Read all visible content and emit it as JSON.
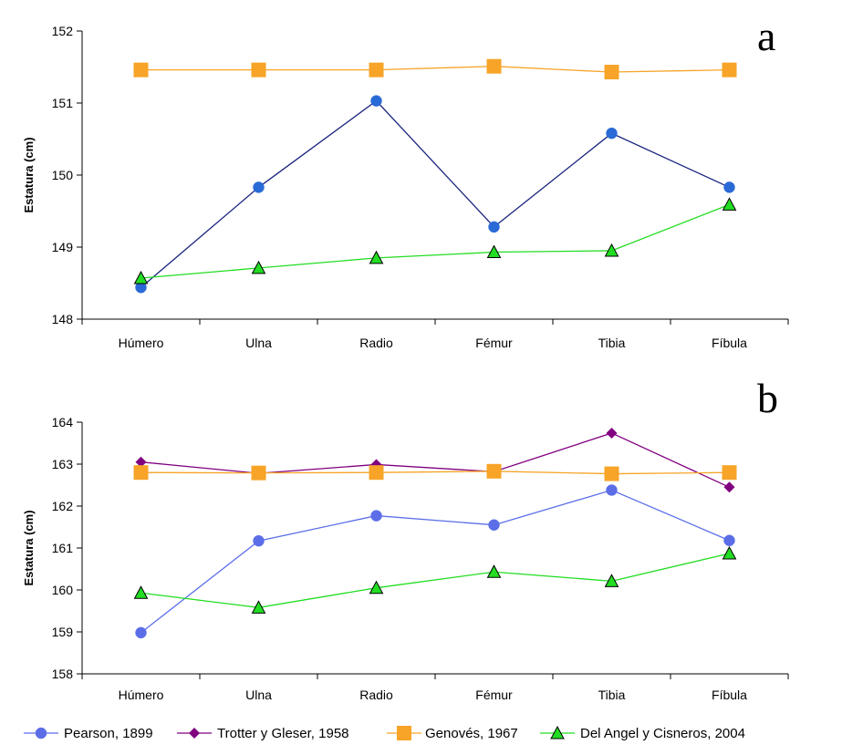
{
  "chart_data": [
    {
      "type": "line",
      "panel_label": "a",
      "categories": [
        "Húmero",
        "Ulna",
        "Radio",
        "Fémur",
        "Tibia",
        "Fíbula"
      ],
      "ylabel": "Estatura (cm)",
      "ylim": [
        148,
        152
      ],
      "yticks": [
        "148",
        "149",
        "150",
        "151",
        "152"
      ],
      "series": [
        {
          "key": "genoves",
          "values": [
            151.46,
            151.46,
            151.46,
            151.51,
            151.43,
            151.46
          ]
        },
        {
          "key": "pearson",
          "values": [
            148.44,
            149.83,
            151.03,
            149.28,
            150.58,
            149.83
          ]
        },
        {
          "key": "delangel",
          "values": [
            148.57,
            148.71,
            148.85,
            148.93,
            148.95,
            149.59
          ]
        }
      ]
    },
    {
      "type": "line",
      "panel_label": "b",
      "categories": [
        "Húmero",
        "Ulna",
        "Radio",
        "Fémur",
        "Tibia",
        "Fíbula"
      ],
      "ylabel": "Estatura (cm)",
      "ylim": [
        158,
        164
      ],
      "yticks": [
        "158",
        "159",
        "160",
        "161",
        "162",
        "163",
        "164"
      ],
      "series": [
        {
          "key": "trotter",
          "values": [
            163.05,
            162.78,
            162.99,
            162.82,
            163.74,
            162.45
          ]
        },
        {
          "key": "genoves",
          "values": [
            162.8,
            162.79,
            162.8,
            162.83,
            162.77,
            162.8
          ]
        },
        {
          "key": "pearson",
          "values": [
            158.98,
            161.17,
            161.77,
            161.55,
            162.38,
            161.18
          ]
        },
        {
          "key": "delangel",
          "values": [
            159.93,
            159.58,
            160.05,
            160.43,
            160.21,
            160.87
          ]
        }
      ]
    }
  ],
  "legend": [
    {
      "key": "pearson",
      "name": "Pearson, 1899",
      "marker": "circle",
      "color": "#5b6ee8"
    },
    {
      "key": "trotter",
      "name": "Trotter y Gleser, 1958",
      "marker": "diamond",
      "color": "#800080"
    },
    {
      "key": "genoves",
      "name": "Genovés, 1967",
      "marker": "square",
      "color": "#f7a428"
    },
    {
      "key": "delangel",
      "name": "Del Angel y Cisneros, 2004",
      "marker": "triangle",
      "color": "#22dd22"
    }
  ],
  "colors": {
    "pearson_panel_a": "#1a237e",
    "pearson_marker_panel_a": "#2a6ad6",
    "pearson_panel_b": "#5b6ee8",
    "trotter": "#800080",
    "genoves": "#f7a428",
    "delangel": "#22dd22"
  }
}
